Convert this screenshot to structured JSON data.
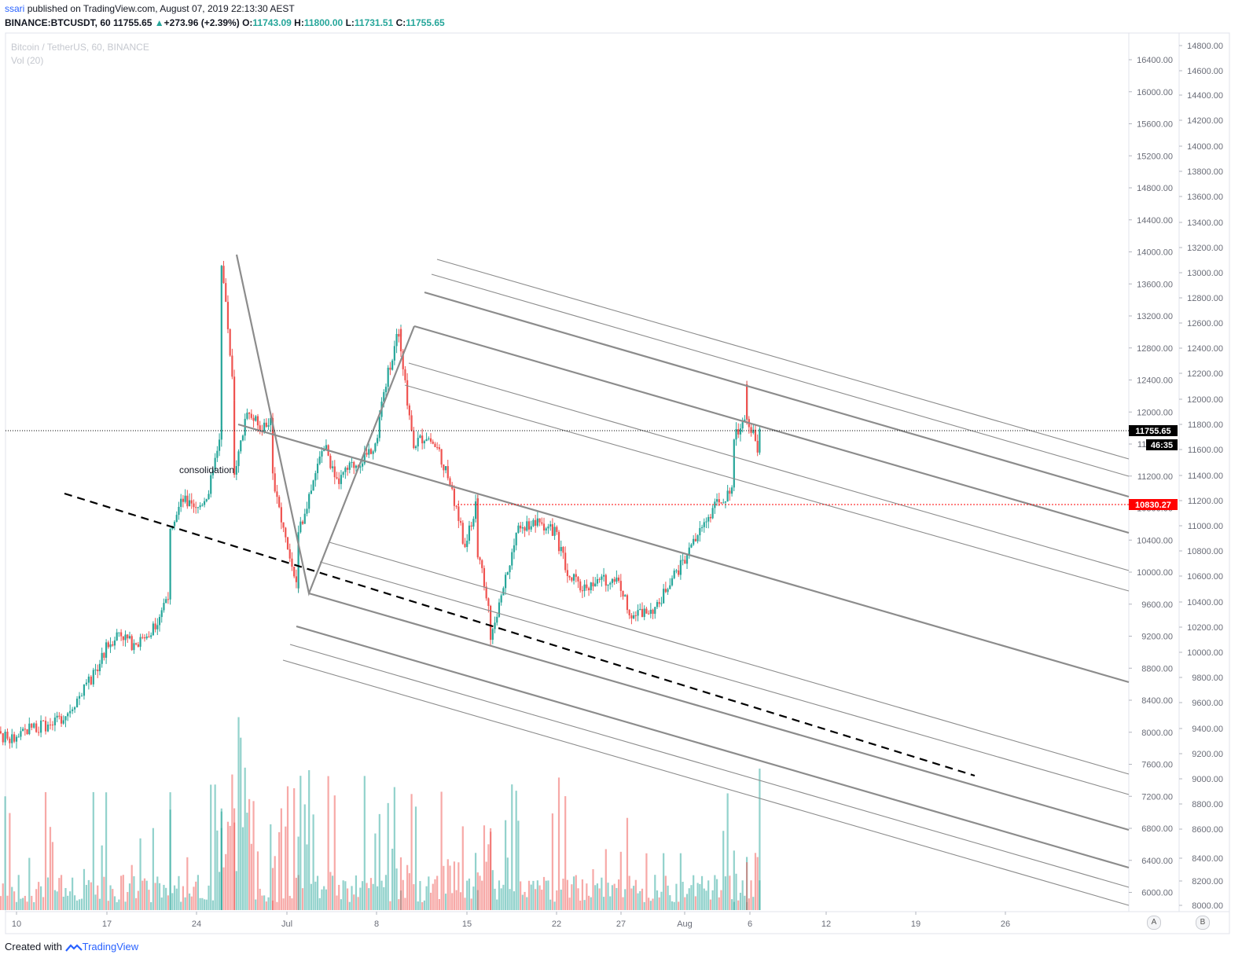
{
  "header": {
    "user": "ssari",
    "published_text": "published on TradingView.com, August 07, 2019 22:13:30 AEST",
    "symbol": "BINANCE:BTCUSDT, 60",
    "last": "11755.65",
    "change_arrow": "▲",
    "change": "+273.96 (+2.39%)",
    "o_label": "O:",
    "o_value": "11743.09",
    "h_label": "H:",
    "h_value": "11800.00",
    "l_label": "L:",
    "l_value": "11731.51",
    "c_label": "C:",
    "c_value": "11755.65"
  },
  "legend": {
    "series": "Bitcoin / TetherUS, 60, BINANCE",
    "volume": "Vol (20)"
  },
  "annotation": "consolidation",
  "price_badges": {
    "last_price": "11755.65",
    "countdown": "46:35",
    "red_level": "10830.27"
  },
  "footer": {
    "created_with": "Created with",
    "brand": "TradingView"
  },
  "scale_buttons": [
    "A",
    "B"
  ],
  "colors": {
    "up": "#26a69a",
    "down": "#ef5350",
    "channel": "#8c8c8c",
    "red_level": "#ff0000",
    "trend_dashed": "#000000"
  },
  "chart_data": {
    "type": "candlestick",
    "symbol": "BTCUSDT",
    "interval": "60",
    "x_tick_labels": [
      "10",
      "17",
      "24",
      "Jul",
      "8",
      "15",
      "22",
      "27",
      "Aug",
      "6",
      "12",
      "19",
      "26"
    ],
    "price_axis_inner": [
      "16400.00",
      "16000.00",
      "15600.00",
      "15200.00",
      "14800.00",
      "14400.00",
      "14000.00",
      "13600.00",
      "13200.00",
      "12800.00",
      "12400.00",
      "12000.00",
      "11600.00",
      "11200.00",
      "10800.00",
      "10400.00",
      "10000.00",
      "9600.00",
      "9200.00",
      "8800.00",
      "8400.00",
      "8000.00",
      "7600.00",
      "7200.00",
      "6800.00",
      "6400.00",
      "6000.00"
    ],
    "price_axis_outer": [
      "14800.00",
      "14600.00",
      "14400.00",
      "14200.00",
      "14000.00",
      "13800.00",
      "13600.00",
      "13400.00",
      "13200.00",
      "13000.00",
      "12800.00",
      "12600.00",
      "12400.00",
      "12200.00",
      "12000.00",
      "11800.00",
      "11600.00",
      "11400.00",
      "11200.00",
      "11000.00",
      "10800.00",
      "10600.00",
      "10400.00",
      "10200.00",
      "10000.00",
      "9800.00",
      "9600.00",
      "9400.00",
      "9200.00",
      "9000.00",
      "8800.00",
      "8600.00",
      "8400.00",
      "8200.00",
      "8000.00"
    ],
    "price_path": [
      [
        "Jun 7",
        8000
      ],
      [
        "Jun 10",
        7900
      ],
      [
        "Jun 11",
        8050
      ],
      [
        "Jun 13",
        8100
      ],
      [
        "Jun 14",
        8250
      ],
      [
        "Jun 16",
        8700
      ],
      [
        "Jun 17",
        9050
      ],
      [
        "Jun 18",
        9250
      ],
      [
        "Jun 19",
        9100
      ],
      [
        "Jun 20",
        9150
      ],
      [
        "Jun 21",
        9400
      ],
      [
        "Jun 22",
        9800
      ],
      [
        "Jun 22",
        10600
      ],
      [
        "Jun 23",
        10900
      ],
      [
        "Jun 24",
        10750
      ],
      [
        "Jun 25",
        11000
      ],
      [
        "Jun 26",
        11800
      ],
      [
        "Jun 26",
        13000
      ],
      [
        "Jun 26",
        13880
      ],
      [
        "Jun 27",
        12200
      ],
      [
        "Jun 27",
        11200
      ],
      [
        "Jun 28",
        12000
      ],
      [
        "Jun 29",
        11800
      ],
      [
        "Jun 30",
        11900
      ],
      [
        "Jun 30",
        11200
      ],
      [
        "Jul 1",
        10400
      ],
      [
        "Jul 2",
        9750
      ],
      [
        "Jul 2",
        10500
      ],
      [
        "Jul 3",
        11000
      ],
      [
        "Jul 4",
        11600
      ],
      [
        "Jul 5",
        11100
      ],
      [
        "Jul 6",
        11300
      ],
      [
        "Jul 7",
        11400
      ],
      [
        "Jul 8",
        11600
      ],
      [
        "Jul 9",
        12500
      ],
      [
        "Jul 10",
        13100
      ],
      [
        "Jul 10",
        12700
      ],
      [
        "Jul 11",
        11600
      ],
      [
        "Jul 12",
        11700
      ],
      [
        "Jul 13",
        11500
      ],
      [
        "Jul 14",
        11000
      ],
      [
        "Jul 15",
        10300
      ],
      [
        "Jul 16",
        10900
      ],
      [
        "Jul 16",
        10200
      ],
      [
        "Jul 17",
        9500
      ],
      [
        "Jul 17",
        9100
      ],
      [
        "Jul 18",
        9800
      ],
      [
        "Jul 19",
        10500
      ],
      [
        "Jul 20",
        10600
      ],
      [
        "Jul 21",
        10600
      ],
      [
        "Jul 22",
        10500
      ],
      [
        "Jul 23",
        10000
      ],
      [
        "Jul 24",
        9800
      ],
      [
        "Jul 25",
        9850
      ],
      [
        "Jul 26",
        9900
      ],
      [
        "Jul 27",
        9900
      ],
      [
        "Jul 28",
        9450
      ],
      [
        "Jul 29",
        9500
      ],
      [
        "Jul 30",
        9550
      ],
      [
        "Jul 31",
        9900
      ],
      [
        "Aug 1",
        10100
      ],
      [
        "Aug 2",
        10400
      ],
      [
        "Aug 3",
        10700
      ],
      [
        "Aug 4",
        10900
      ],
      [
        "Aug 5",
        11000
      ],
      [
        "Aug 5",
        11700
      ],
      [
        "Aug 6",
        11900
      ],
      [
        "Aug 6",
        12300
      ],
      [
        "Aug 6",
        11900
      ],
      [
        "Aug 7",
        11500
      ],
      [
        "Aug 7",
        11755.65
      ]
    ],
    "last_close": 11755.65,
    "marked_level": 10830.27
  }
}
